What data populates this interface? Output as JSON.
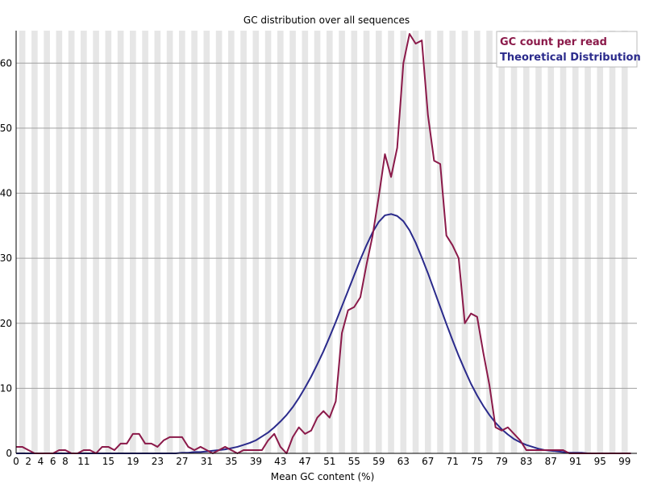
{
  "chart_data": {
    "type": "line",
    "title": "GC distribution over all sequences",
    "xlabel": "Mean GC content (%)",
    "ylabel": "",
    "xlim": [
      0,
      100
    ],
    "ylim": [
      0,
      65
    ],
    "x_tick_labels": [
      "0",
      "2",
      "4",
      "6",
      "8",
      "11",
      "15",
      "19",
      "23",
      "27",
      "31",
      "35",
      "39",
      "43",
      "47",
      "51",
      "55",
      "59",
      "63",
      "67",
      "71",
      "75",
      "79",
      "83",
      "87",
      "91",
      "95",
      "99"
    ],
    "x_tick_values": [
      0,
      2,
      4,
      6,
      8,
      11,
      15,
      19,
      23,
      27,
      31,
      35,
      39,
      43,
      47,
      51,
      55,
      59,
      63,
      67,
      71,
      75,
      79,
      83,
      87,
      91,
      95,
      99
    ],
    "y_ticks": [
      0,
      10,
      20,
      30,
      40,
      50,
      60
    ],
    "grid": true,
    "legend_position": "top-right",
    "series": [
      {
        "name": "GC count per read",
        "color": "#8b1a4a",
        "values": [
          1,
          1,
          0.5,
          0,
          0,
          0,
          0,
          0.5,
          0.5,
          0,
          0,
          0.5,
          0.5,
          0,
          1,
          1,
          0.5,
          1.5,
          1.5,
          3,
          3,
          1.5,
          1.5,
          1,
          2,
          2.5,
          2.5,
          2.5,
          1,
          0.5,
          1,
          0.5,
          0,
          0.5,
          1,
          0.5,
          0,
          0.5,
          0.5,
          0.5,
          0.5,
          2,
          3,
          1,
          0,
          2.5,
          4,
          3,
          3.5,
          5.5,
          6.5,
          5.5,
          8,
          18.5,
          22,
          22.5,
          24,
          29,
          33.5,
          39.5,
          46,
          42.5,
          47,
          60,
          64.5,
          63,
          63.5,
          52,
          45,
          44.5,
          33.5,
          32,
          30,
          20,
          21.5,
          21,
          15.5,
          10.5,
          4,
          3.5,
          4,
          3,
          2,
          0.5,
          0.5,
          0.5,
          0.5,
          0.5,
          0.5,
          0.5,
          0,
          0,
          0,
          0,
          0,
          0,
          0,
          0,
          0,
          0,
          0
        ]
      },
      {
        "name": "Theoretical Distribution",
        "color": "#2b2b8c",
        "values": [
          0,
          0,
          0,
          0,
          0,
          0,
          0,
          0,
          0,
          0,
          0,
          0,
          0,
          0,
          0,
          0,
          0,
          0,
          0,
          0,
          0,
          0,
          0,
          0,
          0,
          0,
          0,
          0.1,
          0.1,
          0.2,
          0.2,
          0.3,
          0.4,
          0.5,
          0.6,
          0.8,
          1.0,
          1.3,
          1.6,
          2.0,
          2.6,
          3.2,
          4.0,
          4.9,
          5.9,
          7.1,
          8.5,
          10.1,
          11.8,
          13.7,
          15.7,
          17.9,
          20.2,
          22.6,
          25.0,
          27.4,
          29.8,
          32.0,
          34.0,
          35.6,
          36.6,
          36.8,
          36.5,
          35.7,
          34.3,
          32.4,
          30.1,
          27.7,
          25.1,
          22.5,
          19.9,
          17.4,
          15.0,
          12.8,
          10.7,
          8.9,
          7.3,
          5.9,
          4.7,
          3.7,
          2.9,
          2.2,
          1.7,
          1.3,
          1.0,
          0.7,
          0.5,
          0.4,
          0.3,
          0.2,
          0.1,
          0.1,
          0.1,
          0,
          0,
          0,
          0,
          0,
          0,
          0,
          0
        ]
      }
    ]
  }
}
